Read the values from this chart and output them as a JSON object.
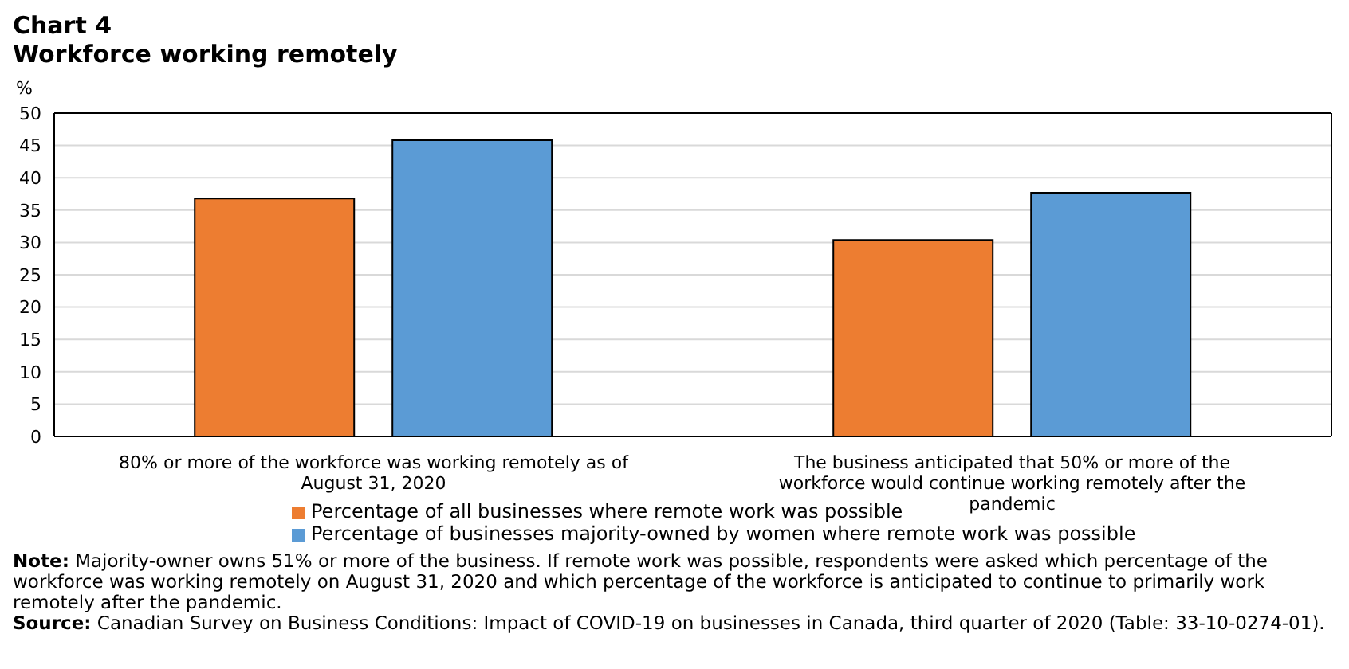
{
  "chart_data": {
    "type": "bar",
    "title": "Chart 4",
    "subtitle": "Workforce working remotely",
    "ylabel": "%",
    "categories": [
      "80% or more of the workforce was working remotely as of August 31, 2020",
      "The business anticipated that 50% or more of the workforce would continue working remotely after the pandemic"
    ],
    "series": [
      {
        "name": "Percentage of all businesses where remote work was possible",
        "color": "#ed7d31",
        "values": [
          36.8,
          30.4
        ]
      },
      {
        "name": "Percentage of businesses majority-owned by women where remote work was possible",
        "color": "#5b9bd5",
        "values": [
          45.8,
          37.7
        ]
      }
    ],
    "ylim": [
      0,
      50
    ],
    "yticks": [
      0,
      5,
      10,
      15,
      20,
      25,
      30,
      35,
      40,
      45,
      50
    ],
    "grid": "y",
    "legend": "bottom",
    "annotations": [
      "Note: Majority-owner owns 51% or more of the business. If remote work was possible, respondents were asked which percentage of the workforce was working remotely on August 31, 2020 and which percentage of the workforce is anticipated to continue to primarily work remotely after the pandemic.",
      "Source: Canadian Survey on Business Conditions: Impact of COVID-19 on businesses in Canada, third quarter of 2020 (Table: 33-10-0274-01)."
    ]
  }
}
